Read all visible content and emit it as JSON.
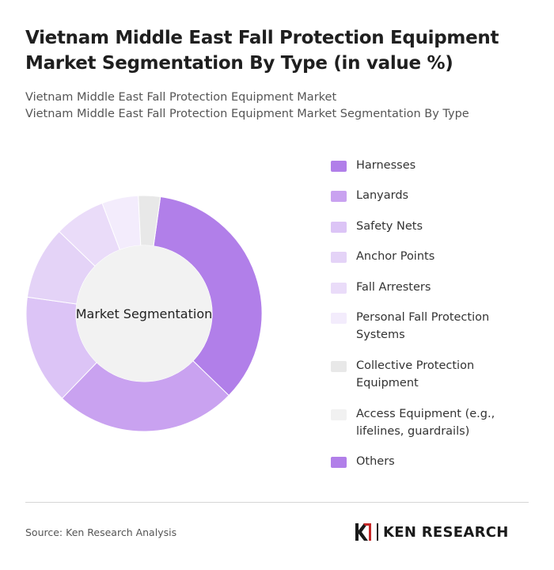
{
  "header": {
    "title": "Vietnam Middle East Fall Protection Equipment Market Segmentation By Type (in value %)",
    "subtitle_line1": "Vietnam Middle East Fall Protection Equipment Market",
    "subtitle_line2": "Vietnam Middle East Fall Protection Equipment Market Segmentation By Type"
  },
  "chart_data": {
    "type": "pie",
    "center_label": "Market Segmentation",
    "categories": [
      "Harnesses",
      "Lanyards",
      "Safety Nets",
      "Anchor Points",
      "Fall Arresters",
      "Personal Fall Protection Systems",
      "Collective Protection Equipment",
      "Access Equipment (e.g., lifelines, guardrails)",
      "Others"
    ],
    "values": [
      35,
      25,
      15,
      10,
      7,
      5,
      3,
      0,
      0
    ],
    "colors": [
      "#b17fe9",
      "#c9a2f0",
      "#dcc4f6",
      "#e4d3f7",
      "#eadcf9",
      "#f3ecfc",
      "#e8e8e8",
      "#f1f1f1",
      "#b17fe9"
    ],
    "center_fill": "#f2f2f2",
    "legend_position": "right"
  },
  "footer": {
    "source": "Source: Ken Research Analysis",
    "logo_text": "KEN RESEARCH"
  }
}
